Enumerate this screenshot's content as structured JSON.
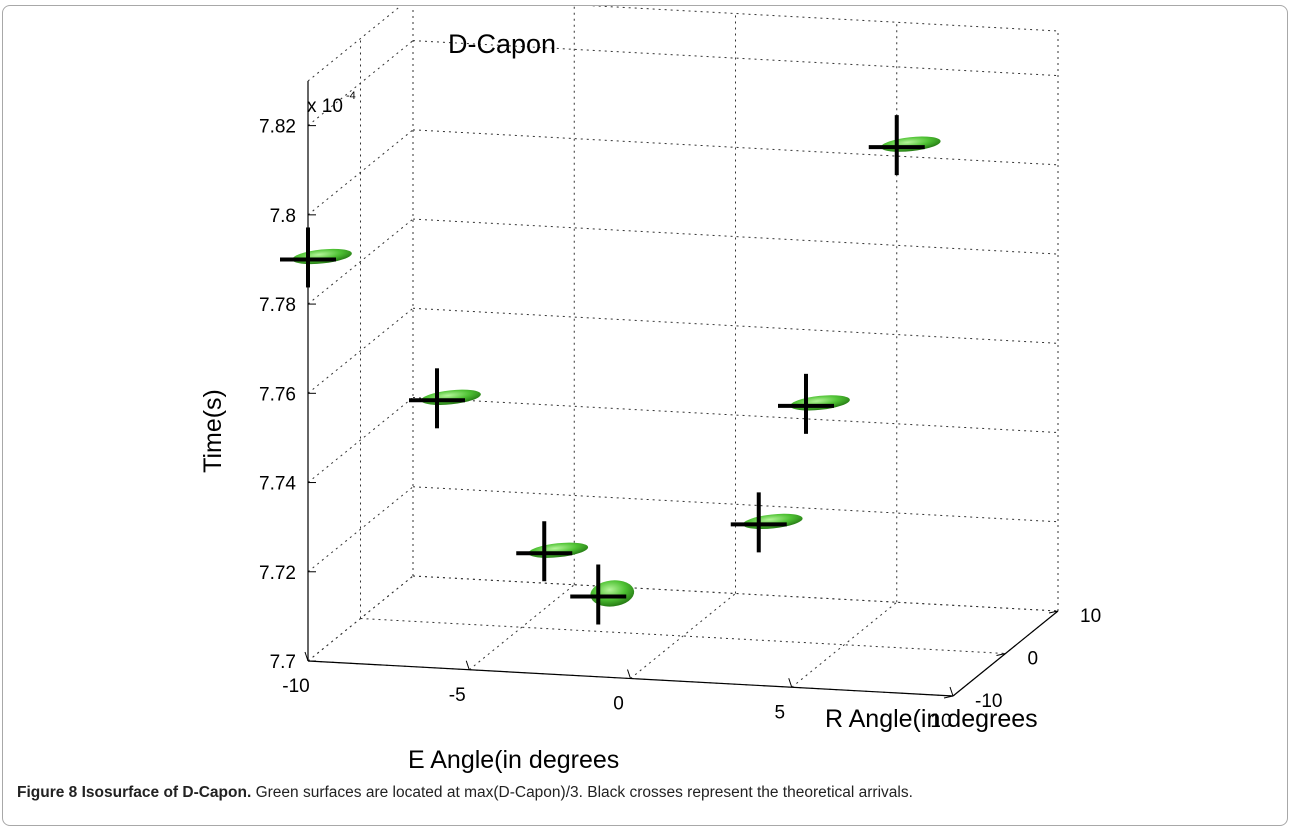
{
  "chart_data": {
    "type": "scatter",
    "title": "D-Capon",
    "xlabel": "E Angle(in degrees",
    "ylabel": "R Angle(in degrees",
    "zlabel": "Time(s)",
    "z_multiplier": "x 10",
    "z_multiplier_exponent": "-4",
    "xlim": [
      -10,
      10
    ],
    "ylim": [
      -10,
      10
    ],
    "zlim": [
      7.7,
      7.83
    ],
    "x_ticks": [
      "-10",
      "-5",
      "0",
      "5",
      "10"
    ],
    "y_ticks": [
      "-10",
      "0",
      "10"
    ],
    "z_ticks": [
      "7.7",
      "7.72",
      "7.74",
      "7.76",
      "7.78",
      "7.8",
      "7.82"
    ],
    "grid": true,
    "marker_colors": {
      "isosurface": "#4fc234",
      "cross": "#000000"
    },
    "points": [
      {
        "e": -10,
        "r": -10,
        "t": 7.79
      },
      {
        "e": -6,
        "r": -10,
        "t": 7.76
      },
      {
        "e": -3,
        "r": -8,
        "t": 7.725
      },
      {
        "e": -1,
        "r": -10,
        "t": 7.718
      },
      {
        "e": 3,
        "r": -4,
        "t": 7.73
      },
      {
        "e": 3,
        "r": 5,
        "t": 7.748
      },
      {
        "e": 5,
        "r": 10,
        "t": 7.802
      }
    ]
  },
  "caption": {
    "label": "Figure 8 Isosurface of D-Capon.",
    "text": " Green surfaces are located at max(D-Capon)/3. Black crosses represent the theoretical arrivals."
  }
}
